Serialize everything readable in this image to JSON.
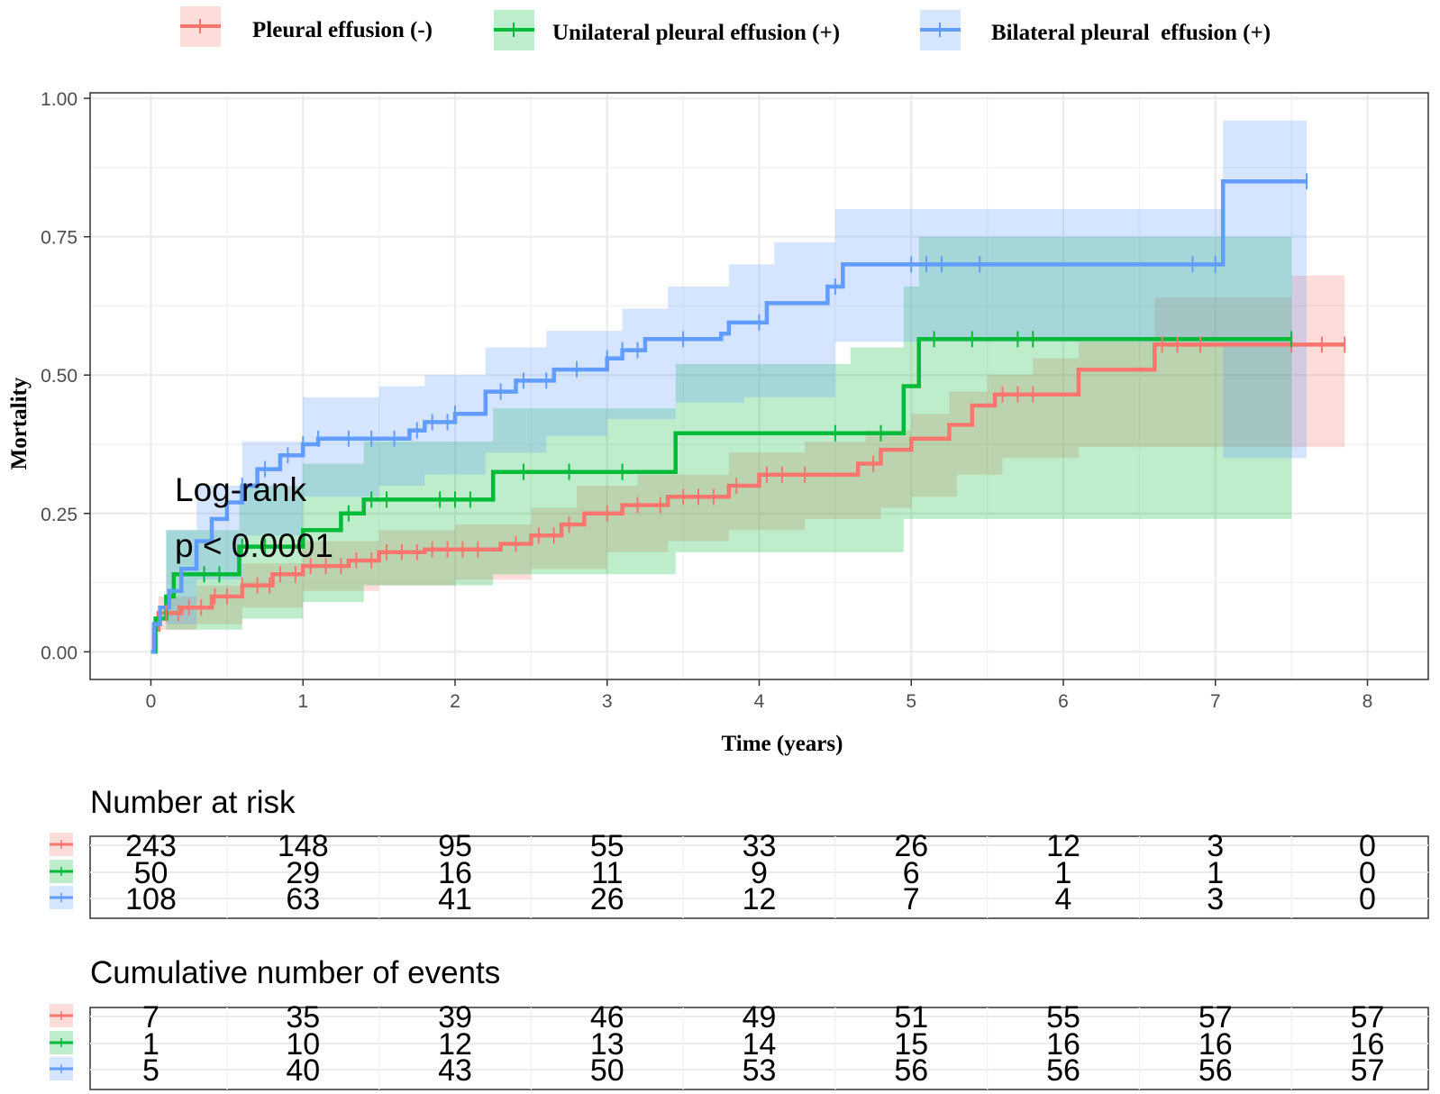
{
  "chart_data": {
    "type": "line",
    "subtype": "kaplan-meier cumulative mortality",
    "xlabel": "Time (years)",
    "ylabel": "Mortality",
    "xlim": [
      -0.4,
      8.4
    ],
    "ylim": [
      -0.05,
      1.01
    ],
    "x_ticks": [
      0,
      1,
      2,
      3,
      4,
      5,
      6,
      7,
      8
    ],
    "y_ticks": [
      0.0,
      0.25,
      0.5,
      0.75,
      1.0
    ],
    "y_tick_labels": [
      "0.00",
      "0.25",
      "0.50",
      "0.75",
      "1.00"
    ],
    "grid": true,
    "legend_position": "top",
    "annotation": [
      "Log-rank",
      "p < 0.0001"
    ],
    "series": [
      {
        "name": "Pleural effusion (-)",
        "color": "#f8766d",
        "steps": [
          [
            0,
            0
          ],
          [
            0.02,
            0.04
          ],
          [
            0.05,
            0.07
          ],
          [
            0.2,
            0.08
          ],
          [
            0.4,
            0.1
          ],
          [
            0.6,
            0.12
          ],
          [
            0.8,
            0.14
          ],
          [
            1.0,
            0.155
          ],
          [
            1.3,
            0.165
          ],
          [
            1.5,
            0.18
          ],
          [
            1.8,
            0.185
          ],
          [
            2.3,
            0.195
          ],
          [
            2.5,
            0.21
          ],
          [
            2.7,
            0.23
          ],
          [
            2.85,
            0.25
          ],
          [
            3.1,
            0.265
          ],
          [
            3.4,
            0.28
          ],
          [
            3.8,
            0.3
          ],
          [
            4.0,
            0.32
          ],
          [
            4.65,
            0.34
          ],
          [
            4.8,
            0.365
          ],
          [
            5.0,
            0.385
          ],
          [
            5.25,
            0.41
          ],
          [
            5.4,
            0.445
          ],
          [
            5.55,
            0.465
          ],
          [
            6.1,
            0.51
          ],
          [
            6.6,
            0.555
          ],
          [
            7.85,
            0.555
          ]
        ],
        "ci_upper": [
          [
            0,
            0
          ],
          [
            0.05,
            0.1
          ],
          [
            0.3,
            0.12
          ],
          [
            0.6,
            0.16
          ],
          [
            1.0,
            0.2
          ],
          [
            1.5,
            0.22
          ],
          [
            2.0,
            0.23
          ],
          [
            2.5,
            0.26
          ],
          [
            2.8,
            0.3
          ],
          [
            3.2,
            0.32
          ],
          [
            3.8,
            0.36
          ],
          [
            4.3,
            0.38
          ],
          [
            4.7,
            0.4
          ],
          [
            5.0,
            0.43
          ],
          [
            5.25,
            0.47
          ],
          [
            5.5,
            0.5
          ],
          [
            5.8,
            0.53
          ],
          [
            6.1,
            0.56
          ],
          [
            6.6,
            0.64
          ],
          [
            7.5,
            0.68
          ],
          [
            7.85,
            0.68
          ]
        ],
        "ci_lower": [
          [
            0,
            0
          ],
          [
            0.05,
            0.04
          ],
          [
            0.3,
            0.05
          ],
          [
            0.6,
            0.08
          ],
          [
            1.0,
            0.11
          ],
          [
            1.5,
            0.12
          ],
          [
            2.0,
            0.13
          ],
          [
            2.5,
            0.15
          ],
          [
            3.0,
            0.18
          ],
          [
            3.4,
            0.2
          ],
          [
            3.8,
            0.22
          ],
          [
            4.3,
            0.24
          ],
          [
            4.8,
            0.26
          ],
          [
            5.0,
            0.28
          ],
          [
            5.3,
            0.32
          ],
          [
            5.6,
            0.35
          ],
          [
            6.1,
            0.37
          ],
          [
            6.6,
            0.37
          ],
          [
            7.85,
            0.37
          ]
        ],
        "censor_x": [
          0.1,
          0.18,
          0.25,
          0.33,
          0.42,
          0.5,
          0.6,
          0.7,
          0.78,
          0.85,
          0.95,
          1.05,
          1.15,
          1.25,
          1.35,
          1.45,
          1.55,
          1.65,
          1.75,
          1.85,
          1.95,
          2.05,
          2.15,
          2.4,
          2.55,
          2.65,
          2.75,
          3.0,
          3.2,
          3.35,
          3.5,
          3.6,
          3.7,
          3.85,
          4.05,
          4.15,
          4.3,
          4.75,
          5.6,
          5.7,
          5.8,
          6.65,
          6.75,
          6.9,
          7.5,
          7.7,
          7.85
        ]
      },
      {
        "name": "Unilateral pleural effusion (+)",
        "color": "#00ba38",
        "steps": [
          [
            0,
            0
          ],
          [
            0.03,
            0.06
          ],
          [
            0.1,
            0.1
          ],
          [
            0.15,
            0.14
          ],
          [
            0.58,
            0.19
          ],
          [
            1.0,
            0.22
          ],
          [
            1.25,
            0.25
          ],
          [
            1.4,
            0.275
          ],
          [
            2.25,
            0.325
          ],
          [
            3.45,
            0.395
          ],
          [
            4.95,
            0.48
          ],
          [
            5.05,
            0.565
          ],
          [
            7.5,
            0.565
          ]
        ],
        "ci_upper": [
          [
            0,
            0
          ],
          [
            0.1,
            0.22
          ],
          [
            0.58,
            0.3
          ],
          [
            1.0,
            0.34
          ],
          [
            1.4,
            0.38
          ],
          [
            2.25,
            0.44
          ],
          [
            3.45,
            0.52
          ],
          [
            4.6,
            0.55
          ],
          [
            4.95,
            0.66
          ],
          [
            5.05,
            0.75
          ],
          [
            7.5,
            0.75
          ]
        ],
        "ci_lower": [
          [
            0,
            0
          ],
          [
            0.1,
            0.04
          ],
          [
            0.6,
            0.06
          ],
          [
            1.0,
            0.09
          ],
          [
            1.4,
            0.12
          ],
          [
            2.25,
            0.14
          ],
          [
            3.45,
            0.18
          ],
          [
            4.95,
            0.24
          ],
          [
            5.05,
            0.24
          ],
          [
            7.5,
            0.24
          ]
        ],
        "censor_x": [
          0.35,
          0.45,
          0.6,
          0.75,
          1.3,
          1.45,
          1.55,
          1.9,
          2.0,
          2.1,
          2.45,
          2.75,
          3.1,
          4.5,
          4.8,
          5.15,
          5.4,
          5.7,
          5.8,
          7.5
        ]
      },
      {
        "name": "Bilateral pleural  effusion (+)",
        "color": "#619cff",
        "steps": [
          [
            0,
            0
          ],
          [
            0.02,
            0.05
          ],
          [
            0.06,
            0.08
          ],
          [
            0.12,
            0.11
          ],
          [
            0.2,
            0.15
          ],
          [
            0.3,
            0.2
          ],
          [
            0.4,
            0.24
          ],
          [
            0.5,
            0.27
          ],
          [
            0.6,
            0.3
          ],
          [
            0.7,
            0.33
          ],
          [
            0.85,
            0.355
          ],
          [
            1.0,
            0.375
          ],
          [
            1.1,
            0.385
          ],
          [
            1.6,
            0.385
          ],
          [
            1.7,
            0.4
          ],
          [
            1.8,
            0.415
          ],
          [
            2.0,
            0.43
          ],
          [
            2.2,
            0.47
          ],
          [
            2.4,
            0.49
          ],
          [
            2.65,
            0.51
          ],
          [
            3.0,
            0.53
          ],
          [
            3.1,
            0.545
          ],
          [
            3.25,
            0.565
          ],
          [
            3.75,
            0.575
          ],
          [
            3.8,
            0.595
          ],
          [
            4.05,
            0.63
          ],
          [
            4.45,
            0.66
          ],
          [
            4.55,
            0.7
          ],
          [
            7.05,
            0.85
          ],
          [
            7.6,
            0.85
          ]
        ],
        "ci_upper": [
          [
            0,
            0
          ],
          [
            0.1,
            0.22
          ],
          [
            0.3,
            0.3
          ],
          [
            0.6,
            0.38
          ],
          [
            1.0,
            0.46
          ],
          [
            1.5,
            0.48
          ],
          [
            1.8,
            0.5
          ],
          [
            2.2,
            0.55
          ],
          [
            2.6,
            0.58
          ],
          [
            3.1,
            0.62
          ],
          [
            3.4,
            0.66
          ],
          [
            3.8,
            0.7
          ],
          [
            4.1,
            0.74
          ],
          [
            4.5,
            0.8
          ],
          [
            7.05,
            0.96
          ],
          [
            7.6,
            0.96
          ]
        ],
        "ci_lower": [
          [
            0,
            0
          ],
          [
            0.1,
            0.05
          ],
          [
            0.3,
            0.13
          ],
          [
            0.6,
            0.21
          ],
          [
            1.0,
            0.28
          ],
          [
            1.5,
            0.3
          ],
          [
            1.8,
            0.32
          ],
          [
            2.2,
            0.36
          ],
          [
            2.6,
            0.39
          ],
          [
            3.0,
            0.42
          ],
          [
            3.45,
            0.45
          ],
          [
            3.9,
            0.46
          ],
          [
            4.5,
            0.56
          ],
          [
            4.9,
            0.56
          ],
          [
            7.05,
            0.35
          ],
          [
            7.6,
            0.35
          ]
        ],
        "censor_x": [
          0.5,
          0.6,
          0.75,
          0.9,
          1.0,
          1.1,
          1.3,
          1.45,
          1.6,
          1.75,
          1.85,
          1.95,
          2.0,
          2.3,
          2.45,
          2.6,
          2.8,
          3.0,
          3.1,
          3.2,
          3.5,
          4.0,
          4.5,
          5.0,
          5.1,
          5.2,
          5.45,
          6.85,
          7.0,
          7.6
        ]
      }
    ]
  },
  "risk_table": {
    "title": "Number at risk",
    "rows": [
      [
        "243",
        "148",
        "95",
        "55",
        "33",
        "26",
        "12",
        "3",
        "0"
      ],
      [
        "50",
        "29",
        "16",
        "11",
        "9",
        "6",
        "1",
        "1",
        "0"
      ],
      [
        "108",
        "63",
        "41",
        "26",
        "12",
        "7",
        "4",
        "3",
        "0"
      ]
    ]
  },
  "events_table": {
    "title": "Cumulative number of events",
    "rows": [
      [
        "7",
        "35",
        "39",
        "46",
        "49",
        "51",
        "55",
        "57",
        "57"
      ],
      [
        "1",
        "10",
        "12",
        "13",
        "14",
        "15",
        "16",
        "16",
        "16"
      ],
      [
        "5",
        "40",
        "43",
        "50",
        "53",
        "56",
        "56",
        "56",
        "57"
      ]
    ]
  }
}
